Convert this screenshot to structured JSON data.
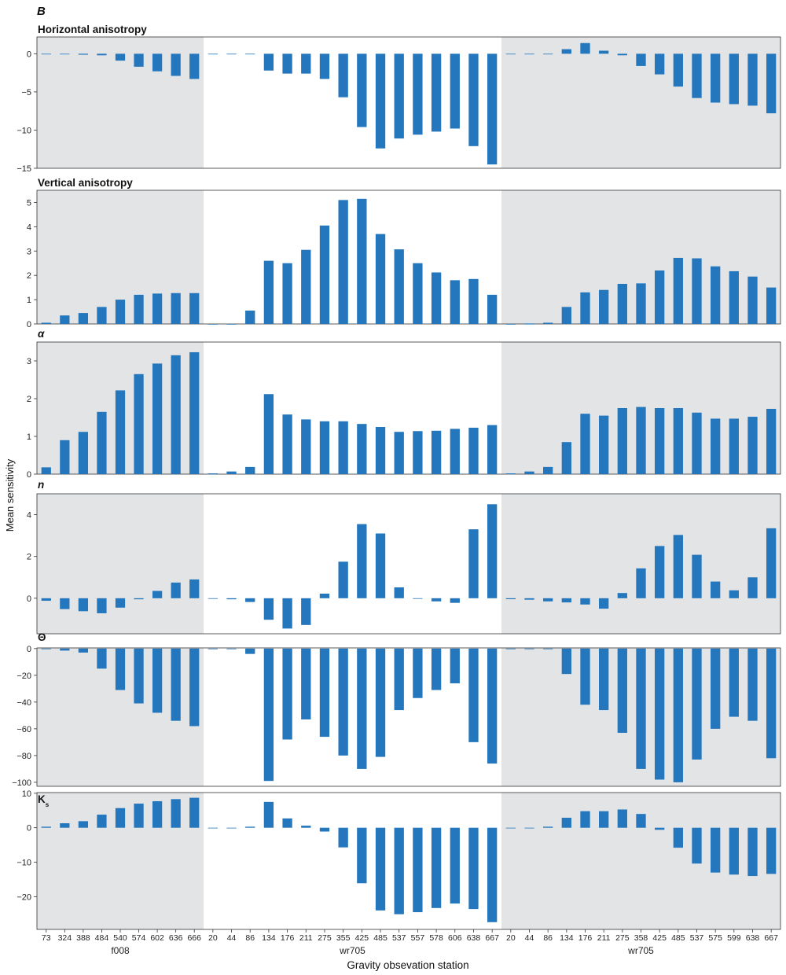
{
  "figure": {
    "panel_letter": "B",
    "ylabel": "Mean sensitivity",
    "xlabel": "Gravity obsevation station"
  },
  "colors": {
    "bar": "#2577bd",
    "shade": "#e3e4e6",
    "axis": "#333333"
  },
  "chart_data": [
    {
      "type": "bar",
      "title": "Horizontal anisotropy",
      "ylim": [
        -15,
        2.2
      ],
      "yticks": [
        0,
        -5,
        -10,
        -15
      ],
      "groups": [
        {
          "station": "f008",
          "categories": [
            "73",
            "324",
            "388",
            "484",
            "540",
            "574",
            "602",
            "636",
            "666"
          ],
          "values": [
            0,
            0,
            -0.05,
            -0.2,
            -0.9,
            -1.7,
            -2.3,
            -2.9,
            -3.3
          ]
        },
        {
          "station": "wr705",
          "categories": [
            "20",
            "44",
            "86",
            "134",
            "176",
            "211",
            "275",
            "355",
            "425",
            "485",
            "537",
            "557",
            "578",
            "606",
            "638",
            "667"
          ],
          "values": [
            0,
            0,
            0,
            -2.2,
            -2.6,
            -2.6,
            -3.3,
            -5.7,
            -9.6,
            -12.4,
            -11.1,
            -10.6,
            -10.2,
            -9.8,
            -12.1,
            -14.5
          ]
        },
        {
          "station": "wr705",
          "categories": [
            "20",
            "44",
            "86",
            "134",
            "176",
            "211",
            "275",
            "358",
            "425",
            "485",
            "537",
            "575",
            "599",
            "638",
            "667"
          ],
          "values": [
            0,
            0,
            0,
            0.6,
            1.4,
            0.4,
            -0.2,
            -1.6,
            -2.7,
            -4.3,
            -5.8,
            -6.4,
            -6.6,
            -6.8,
            -7.8
          ]
        }
      ]
    },
    {
      "type": "bar",
      "title": "Vertical anisotropy",
      "ylim": [
        0,
        5.5
      ],
      "yticks": [
        0,
        1,
        2,
        3,
        4,
        5
      ],
      "groups": [
        {
          "station": "f008",
          "categories": [
            "73",
            "324",
            "388",
            "484",
            "540",
            "574",
            "602",
            "636",
            "666"
          ],
          "values": [
            0.05,
            0.35,
            0.45,
            0.7,
            1.0,
            1.2,
            1.25,
            1.27,
            1.27
          ]
        },
        {
          "station": "wr705",
          "categories": [
            "20",
            "44",
            "86",
            "134",
            "176",
            "211",
            "275",
            "355",
            "425",
            "485",
            "537",
            "557",
            "578",
            "606",
            "638",
            "667"
          ],
          "values": [
            0,
            0,
            0.55,
            2.6,
            2.5,
            3.05,
            4.05,
            5.1,
            5.15,
            3.7,
            3.07,
            2.5,
            2.12,
            1.8,
            1.85,
            1.2
          ]
        },
        {
          "station": "wr705",
          "categories": [
            "20",
            "44",
            "86",
            "134",
            "176",
            "211",
            "275",
            "358",
            "425",
            "485",
            "537",
            "575",
            "599",
            "638",
            "667"
          ],
          "values": [
            0,
            0.02,
            0.05,
            0.7,
            1.3,
            1.4,
            1.65,
            1.67,
            2.2,
            2.72,
            2.7,
            2.37,
            2.17,
            1.95,
            1.5
          ]
        }
      ]
    },
    {
      "type": "bar",
      "title": "α",
      "ylim": [
        0,
        3.5
      ],
      "yticks": [
        0,
        1,
        2,
        3
      ],
      "groups": [
        {
          "station": "f008",
          "categories": [
            "73",
            "324",
            "388",
            "484",
            "540",
            "574",
            "602",
            "636",
            "666"
          ],
          "values": [
            0.18,
            0.9,
            1.12,
            1.65,
            2.22,
            2.65,
            2.93,
            3.15,
            3.23
          ]
        },
        {
          "station": "wr705",
          "categories": [
            "20",
            "44",
            "86",
            "134",
            "176",
            "211",
            "275",
            "355",
            "425",
            "485",
            "537",
            "557",
            "578",
            "606",
            "638",
            "667"
          ],
          "values": [
            0.02,
            0.07,
            0.19,
            2.12,
            1.58,
            1.45,
            1.4,
            1.4,
            1.33,
            1.25,
            1.12,
            1.14,
            1.15,
            1.2,
            1.23,
            1.3
          ]
        },
        {
          "station": "wr705",
          "categories": [
            "20",
            "44",
            "86",
            "134",
            "176",
            "211",
            "275",
            "358",
            "425",
            "485",
            "537",
            "575",
            "599",
            "638",
            "667"
          ],
          "values": [
            0.02,
            0.07,
            0.19,
            0.85,
            1.6,
            1.55,
            1.75,
            1.78,
            1.75,
            1.75,
            1.63,
            1.47,
            1.47,
            1.52,
            1.73
          ]
        }
      ]
    },
    {
      "type": "bar",
      "title": "n",
      "ylim": [
        -1.7,
        5.0
      ],
      "yticks": [
        0,
        2,
        4
      ],
      "groups": [
        {
          "station": "f008",
          "categories": [
            "73",
            "324",
            "388",
            "484",
            "540",
            "574",
            "602",
            "636",
            "666"
          ],
          "values": [
            -0.12,
            -0.52,
            -0.62,
            -0.72,
            -0.45,
            -0.05,
            0.35,
            0.75,
            0.9
          ]
        },
        {
          "station": "wr705",
          "categories": [
            "20",
            "44",
            "86",
            "134",
            "176",
            "211",
            "275",
            "355",
            "425",
            "485",
            "537",
            "557",
            "578",
            "606",
            "638",
            "667"
          ],
          "values": [
            0,
            -0.05,
            -0.18,
            -1.03,
            -1.45,
            -1.28,
            0.22,
            1.75,
            3.55,
            3.1,
            0.52,
            0,
            -0.15,
            -0.22,
            3.3,
            4.5
          ]
        },
        {
          "station": "wr705",
          "categories": [
            "20",
            "44",
            "86",
            "134",
            "176",
            "211",
            "275",
            "358",
            "425",
            "485",
            "537",
            "575",
            "599",
            "638",
            "667"
          ],
          "values": [
            -0.03,
            -0.07,
            -0.15,
            -0.2,
            -0.3,
            -0.5,
            0.25,
            1.43,
            2.5,
            3.03,
            2.08,
            0.8,
            0.38,
            1.0,
            3.35
          ]
        }
      ]
    },
    {
      "type": "bar",
      "title": "Θ",
      "ylim": [
        -103,
        0.5
      ],
      "yticks": [
        0,
        -20,
        -40,
        -60,
        -80,
        -100
      ],
      "groups": [
        {
          "station": "f008",
          "categories": [
            "73",
            "324",
            "388",
            "484",
            "540",
            "574",
            "602",
            "636",
            "666"
          ],
          "values": [
            0,
            -1.5,
            -3,
            -15,
            -31,
            -41,
            -48,
            -54,
            -58
          ]
        },
        {
          "station": "wr705",
          "categories": [
            "20",
            "44",
            "86",
            "134",
            "176",
            "211",
            "275",
            "355",
            "425",
            "485",
            "537",
            "557",
            "578",
            "606",
            "638",
            "667"
          ],
          "values": [
            0,
            0,
            -4,
            -99,
            -68,
            -53,
            -66,
            -80,
            -90,
            -81,
            -46,
            -37,
            -31,
            -26,
            -70,
            -86
          ]
        },
        {
          "station": "wr705",
          "categories": [
            "20",
            "44",
            "86",
            "134",
            "176",
            "211",
            "275",
            "358",
            "425",
            "485",
            "537",
            "575",
            "599",
            "638",
            "667"
          ],
          "values": [
            0,
            0,
            0,
            -19,
            -42,
            -46,
            -63,
            -90,
            -98,
            -100,
            -83,
            -60,
            -51,
            -54,
            -82
          ]
        }
      ]
    },
    {
      "type": "bar",
      "title": "K",
      "title_subscript": "s",
      "ylim": [
        -29.5,
        10.2
      ],
      "yticks": [
        10,
        0,
        -10,
        -20
      ],
      "groups": [
        {
          "station": "f008",
          "categories": [
            "73",
            "324",
            "388",
            "484",
            "540",
            "574",
            "602",
            "636",
            "666"
          ],
          "values": [
            0.3,
            1.3,
            1.9,
            3.8,
            5.7,
            7.0,
            7.7,
            8.3,
            8.7
          ]
        },
        {
          "station": "wr705",
          "categories": [
            "20",
            "44",
            "86",
            "134",
            "176",
            "211",
            "275",
            "355",
            "425",
            "485",
            "537",
            "557",
            "578",
            "606",
            "638",
            "667"
          ],
          "values": [
            0,
            0,
            0.3,
            7.5,
            2.7,
            0.6,
            -1.1,
            -5.7,
            -16.1,
            -24.0,
            -25.1,
            -24.5,
            -23.3,
            -22.0,
            -23.6,
            -27.4
          ]
        },
        {
          "station": "wr705",
          "categories": [
            "20",
            "44",
            "86",
            "134",
            "176",
            "211",
            "275",
            "358",
            "425",
            "485",
            "537",
            "575",
            "599",
            "638",
            "667"
          ],
          "values": [
            0,
            0,
            0.3,
            2.9,
            4.8,
            4.8,
            5.3,
            4.0,
            -0.6,
            -5.8,
            -10.4,
            -13.0,
            -13.6,
            -14.0,
            -13.4
          ]
        }
      ]
    }
  ]
}
